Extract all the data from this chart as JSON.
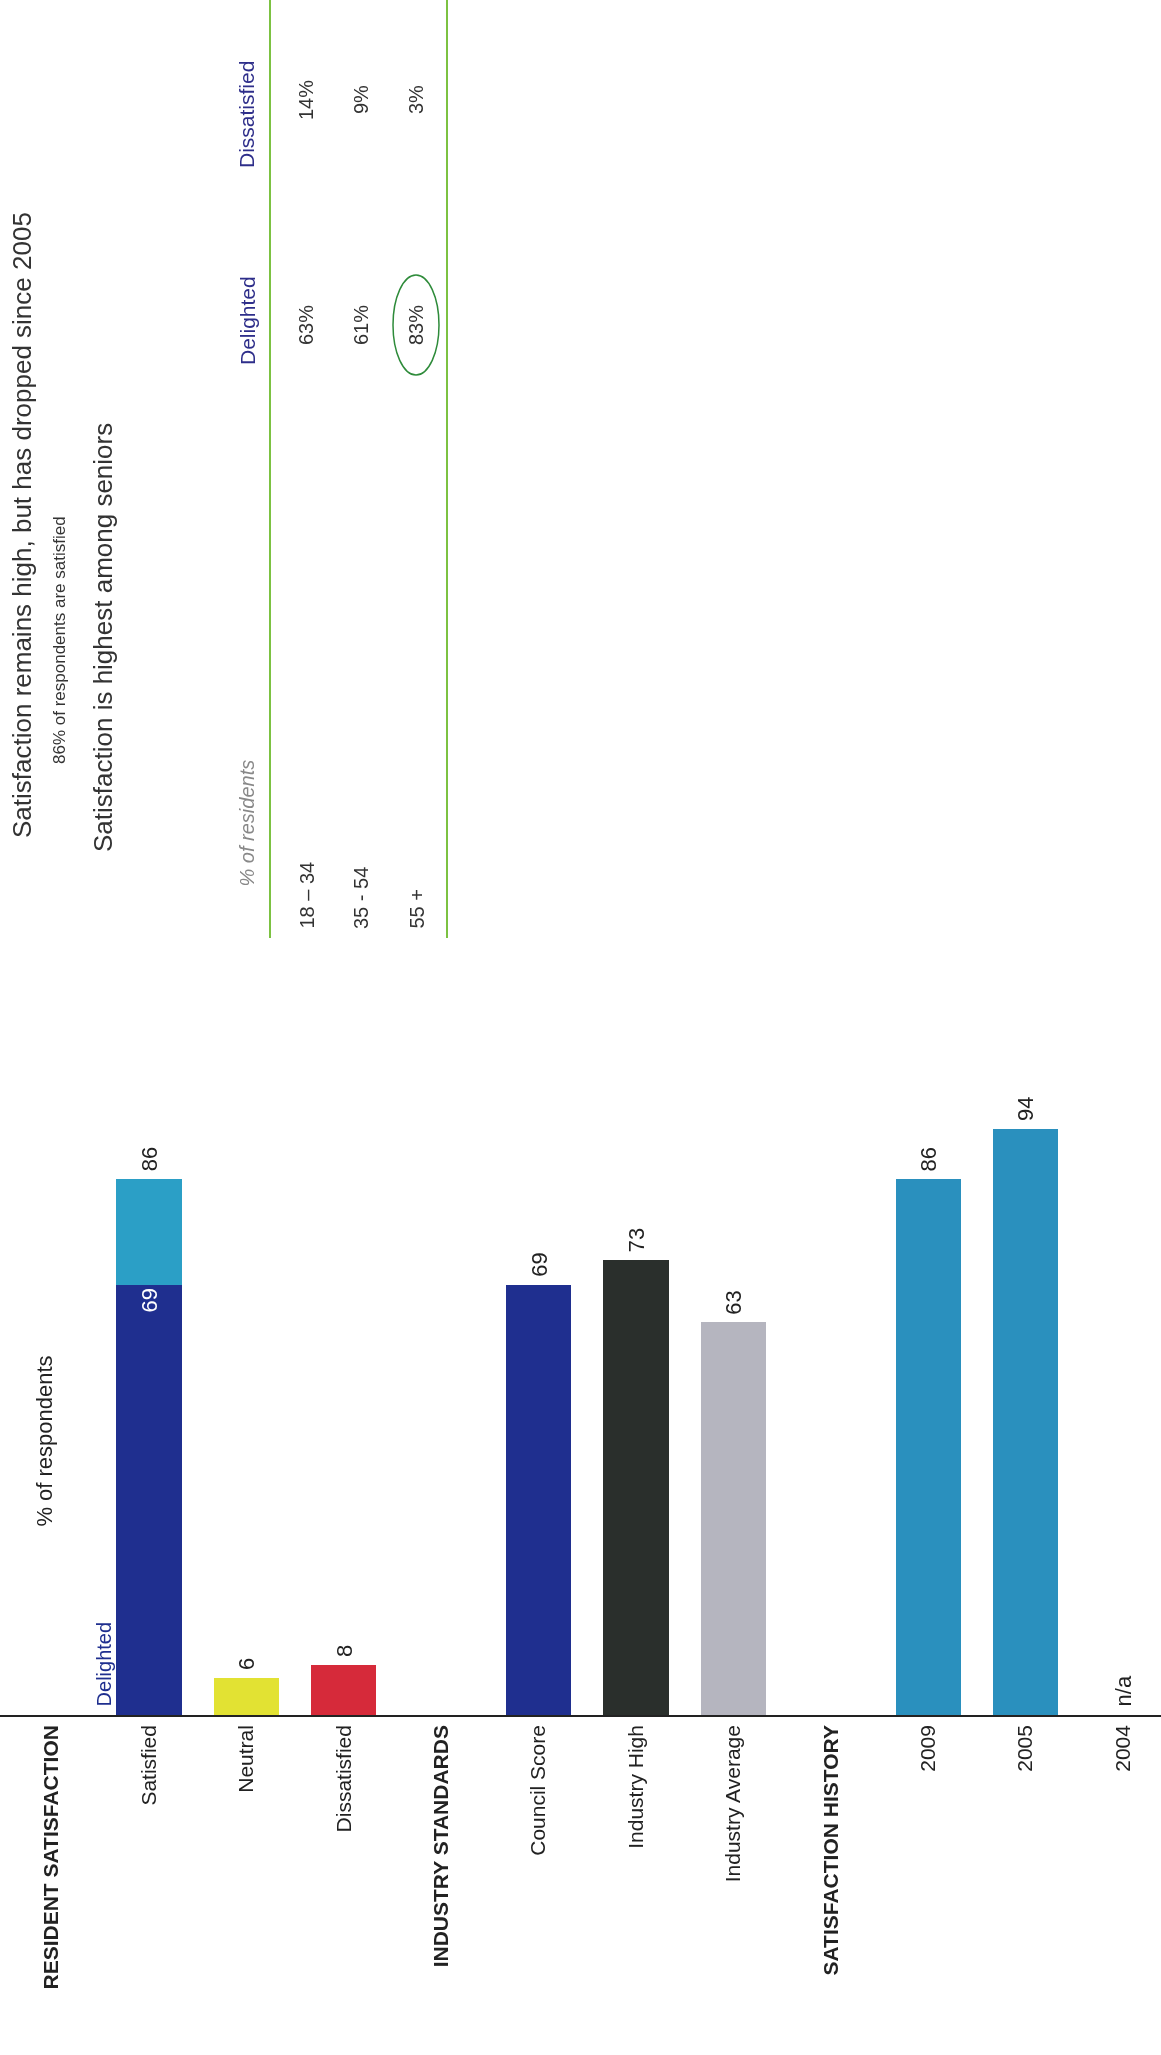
{
  "chart_data": {
    "type": "bar",
    "stacked": true,
    "ylabel": "% of respondents",
    "categories": [
      "RESIDENT SATISFACTION",
      "Satisfied",
      "Neutral",
      "Dissatisfied",
      "INDUSTRY STANDARDS",
      "Council Score",
      "Industry High",
      "Industry Average",
      "SATISFACTION HISTORY",
      "2009",
      "2005",
      "2004"
    ],
    "series": [
      {
        "name": "Delighted",
        "color": "#1f2f8f",
        "values": [
          null,
          69,
          null,
          null,
          null,
          null,
          null,
          null,
          null,
          null,
          null,
          null
        ],
        "value_labels": [
          null,
          "69",
          null,
          null,
          null,
          null,
          null,
          null,
          null,
          null,
          null,
          null
        ]
      },
      {
        "colors": [
          "#2a9cc4",
          "#2b9fc6",
          "#e2e233",
          "#d62a3a",
          "#2a9cc4",
          "#1f2f8f",
          "#2a2f2c",
          "#b5b5bf",
          "#2a9cc4",
          "#2a90be",
          "#2a90be",
          "#2a90be"
        ],
        "values": [
          null,
          17,
          6,
          8,
          null,
          69,
          73,
          63,
          null,
          86,
          94,
          null
        ]
      }
    ],
    "totals": [
      null,
      "86",
      "6",
      "8",
      null,
      "69",
      "73",
      "63",
      null,
      "86",
      "94",
      "n/a"
    ],
    "tick_labels": "x",
    "annotations": [
      "Satisfaction remains high, but has dropped since 2005",
      "86% of respondents are satisfied",
      "Satisfaction is highest among seniors",
      "% of residents",
      "Delighted",
      "Dissatisfied",
      "18 – 34",
      "63%",
      "14%",
      "35 - 54",
      "61%",
      "9%",
      "55 +",
      "83%",
      "3%"
    ]
  }
}
